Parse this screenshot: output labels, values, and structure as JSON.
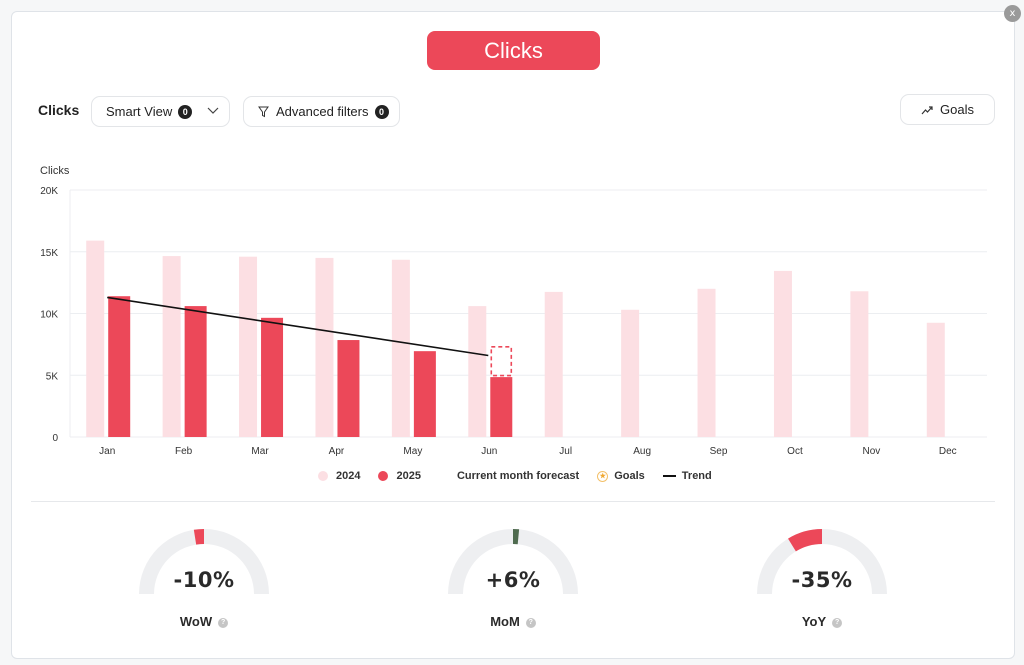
{
  "header": {
    "title": "Clicks",
    "close_label": "x"
  },
  "toolbar": {
    "label": "Clicks",
    "smart_view": {
      "label": "Smart View",
      "badge": "0"
    },
    "advanced_filters": {
      "label": "Advanced filters",
      "badge": "0"
    },
    "goals": {
      "label": "Goals"
    }
  },
  "colors": {
    "accent": "#ec4859",
    "series_2024": "#fcdfe3",
    "series_2025": "#ec4859",
    "trend": "#111111",
    "gauge_track": "#eeeff1",
    "gauge_positive": "#4f6b4f"
  },
  "chart_data": {
    "type": "bar",
    "title": "",
    "ylabel": "Clicks",
    "xlabel": "",
    "ylim": [
      0,
      20000
    ],
    "yticks": [
      "0",
      "5K",
      "10K",
      "15K",
      "20K"
    ],
    "grid": true,
    "legend_position": "bottom",
    "categories": [
      "Jan",
      "Feb",
      "Mar",
      "Apr",
      "May",
      "Jun",
      "Jul",
      "Aug",
      "Sep",
      "Oct",
      "Nov",
      "Dec"
    ],
    "series": [
      {
        "name": "2024",
        "values": [
          15900,
          14650,
          14600,
          14500,
          14350,
          10600,
          11750,
          10300,
          12000,
          13450,
          11800,
          9250
        ]
      },
      {
        "name": "2025",
        "values": [
          11400,
          10600,
          9650,
          7850,
          6950,
          4850,
          null,
          null,
          null,
          null,
          null,
          null
        ]
      }
    ],
    "forecast": {
      "name": "Current month forecast",
      "category": "Jun",
      "value": 7300
    },
    "trend": {
      "name": "Trend",
      "from": {
        "category": "Jan",
        "value": 11300
      },
      "to": {
        "category": "Jun",
        "value": 6600
      }
    },
    "legend": [
      "2024",
      "2025",
      "Current month forecast",
      "Goals",
      "Trend"
    ]
  },
  "legend": {
    "items": [
      "2024",
      "2025",
      "Current month forecast",
      "Goals",
      "Trend"
    ]
  },
  "gauges": [
    {
      "label": "WoW",
      "value": "-10%",
      "pct": -10
    },
    {
      "label": "MoM",
      "value": "+6%",
      "pct": 6
    },
    {
      "label": "YoY",
      "value": "-35%",
      "pct": -35
    }
  ],
  "help_icon": "?"
}
